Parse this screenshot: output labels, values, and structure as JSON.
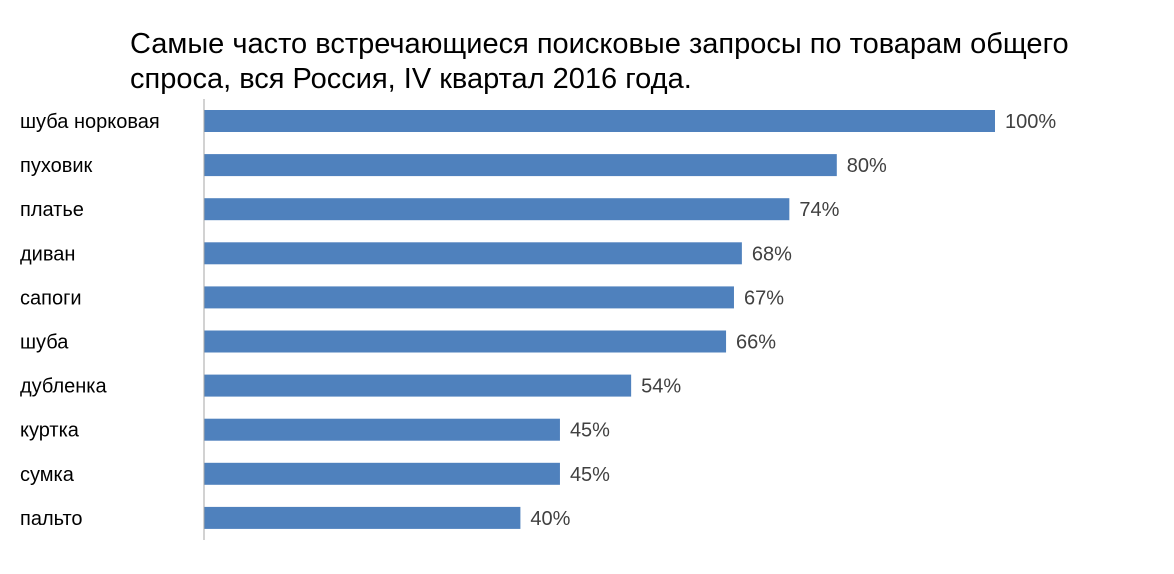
{
  "chart_data": {
    "type": "bar",
    "orientation": "horizontal",
    "title": "Самые часто встречающиеся поисковые запросы по товарам общего спроса, вся Россия, IV квартал 2016 года.",
    "categories": [
      "шуба норковая",
      "пуховик",
      "платье",
      "диван",
      "сапоги",
      "шуба",
      "дубленка",
      "куртка",
      "сумка",
      "пальто"
    ],
    "values": [
      100,
      80,
      74,
      68,
      67,
      66,
      54,
      45,
      45,
      40
    ],
    "value_labels": [
      "100%",
      "80%",
      "74%",
      "68%",
      "67%",
      "66%",
      "54%",
      "45%",
      "45%",
      "40%"
    ],
    "xlim": [
      0,
      100
    ],
    "grid": false,
    "legend": "none",
    "colors": {
      "bar": "#4F81BD",
      "axis": "#A6A6A6",
      "value_text": "#404040"
    }
  }
}
